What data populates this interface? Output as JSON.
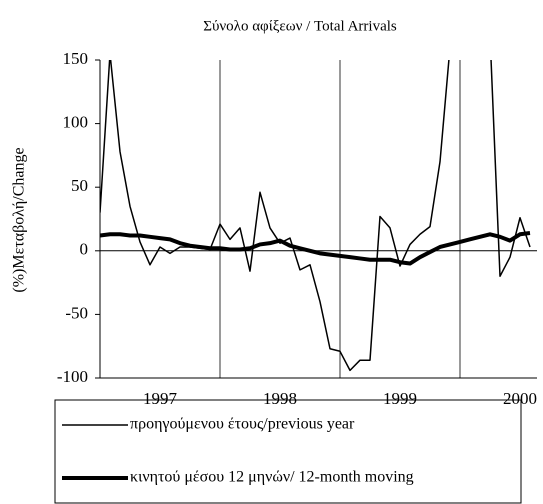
{
  "chart_data": {
    "type": "line",
    "title": "Σύνολο αφίξεων / Total Arrivals",
    "y_label": "(%)Μεταβολή/Change",
    "categories": [
      null,
      null,
      null,
      null,
      null,
      null,
      "1997",
      null,
      null,
      null,
      null,
      null,
      null,
      null,
      null,
      null,
      null,
      null,
      "1998",
      null,
      null,
      null,
      null,
      null,
      null,
      null,
      null,
      null,
      null,
      null,
      "1999",
      null,
      null,
      null,
      null,
      null,
      null,
      null,
      null,
      null,
      null,
      null,
      "2000",
      null
    ],
    "ylim": [
      -100,
      150
    ],
    "yticks": [
      -100,
      -50,
      0,
      50,
      100,
      150
    ],
    "series": [
      {
        "name": "προηγούμενου έτους/previous year",
        "color": "#000000",
        "line_width": 1.5,
        "values": [
          30,
          155,
          78,
          35,
          7,
          -11,
          3,
          -2,
          3,
          3,
          2,
          1,
          21,
          9,
          18,
          -16,
          46,
          18,
          6,
          10,
          -15,
          -11,
          -40,
          -77,
          -79,
          -94,
          -86,
          -86,
          27,
          18,
          -12,
          5,
          13,
          19,
          70,
          160,
          null,
          null,
          null,
          170,
          -20,
          -5,
          26,
          3
        ]
      },
      {
        "name": "κινητού μέσου 12 μηνών/ 12-month moving",
        "color": "#000000",
        "line_width": 4,
        "values": [
          12,
          13,
          13,
          12,
          12,
          11,
          10,
          9,
          6,
          4,
          3,
          2,
          2,
          1,
          1,
          2,
          5,
          6,
          8,
          4,
          2,
          0,
          -2,
          -3,
          -4,
          -5,
          -6,
          -7,
          -7,
          -7,
          -9,
          -10,
          -5,
          -1,
          3,
          5,
          7,
          9,
          11,
          13,
          11,
          8,
          13,
          14
        ]
      }
    ]
  }
}
